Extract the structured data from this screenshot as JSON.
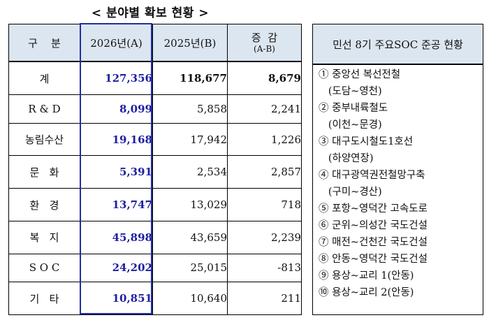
{
  "title": "< 분야별 확보 현황 >",
  "table": {
    "headers": {
      "category": "구    분",
      "y2026": "2026년(A)",
      "y2025": "2025년(B)",
      "diff": "증  감",
      "diff_sub": "(A-B)"
    },
    "rows": [
      {
        "cat": "계",
        "a": "127,356",
        "b": "118,677",
        "d": "8,679"
      },
      {
        "cat": "R & D",
        "a": "8,099",
        "b": "5,858",
        "d": "2,241"
      },
      {
        "cat": "농림수산",
        "a": "19,168",
        "b": "17,942",
        "d": "1,226"
      },
      {
        "cat": "문   화",
        "a": "5,391",
        "b": "2,534",
        "d": "2,857"
      },
      {
        "cat": "환   경",
        "a": "13,747",
        "b": "13,029",
        "d": "718"
      },
      {
        "cat": "복   지",
        "a": "45,898",
        "b": "43,659",
        "d": "2,239"
      },
      {
        "cat": "S O C",
        "a": "24,202",
        "b": "25,015",
        "d": "-813"
      },
      {
        "cat": "기   타",
        "a": "10,851",
        "b": "10,640",
        "d": "211"
      }
    ]
  },
  "soc": {
    "header": "민선 8기 주요SOC 준공 현황",
    "items": [
      "① 중앙선 복선전철",
      "   (도담~영천)",
      "② 중부내륙철도",
      "   (이천~문경)",
      "③ 대구도시철도1호선",
      "   (하양연장)",
      "④ 대구광역권전철망구축",
      "   (구미~경산)",
      "⑤ 포항~영덕간 고속도로",
      "⑥ 군위~의성간 국도건설",
      "⑦ 매전~건천간 국도건설",
      "⑧ 안동~영덕간 국도건설",
      "⑨ 용상~교리 1(안동)",
      "⑩ 용상~교리 2(안동)"
    ]
  }
}
